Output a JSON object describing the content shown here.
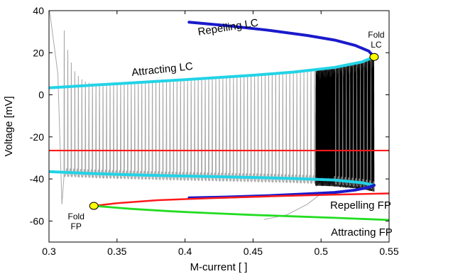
{
  "chart_data": {
    "type": "line",
    "xlabel": "M-current [ ]",
    "ylabel": "Voltage [mV]",
    "xlim": [
      0.3,
      0.55
    ],
    "ylim": [
      -70,
      40
    ],
    "x_ticks": [
      "0.3",
      "0.35",
      "0.4",
      "0.45",
      "0.5",
      "0.55"
    ],
    "y_ticks": [
      "40",
      "20",
      "0",
      "-20",
      "-40",
      "-60"
    ],
    "colors": {
      "repelling_lc": "#1a1acc",
      "attracting_lc": "#22d3e6",
      "repelling_fp": "#ff1a1a",
      "attracting_fp": "#22dd22",
      "trajectory_gray": "#a8a8a8",
      "trajectory_black": "#000000",
      "fold_point": "#ffff00"
    },
    "series": [
      {
        "name": "Repelling LC",
        "x": [
          0.403,
          0.43,
          0.46,
          0.49,
          0.51,
          0.525,
          0.535,
          0.539
        ],
        "upper": [
          34.5,
          32.9,
          30.8,
          28.2,
          26.0,
          23.5,
          20.8,
          18
        ],
        "lower": [
          -49,
          -48.6,
          -48.0,
          -47.1,
          -46.4,
          -45.3,
          -44.0,
          -43
        ]
      },
      {
        "name": "Attracting LC",
        "x": [
          0.3,
          0.33,
          0.36,
          0.39,
          0.42,
          0.45,
          0.48,
          0.51,
          0.53,
          0.539
        ],
        "upper": [
          3.3,
          4.5,
          5.6,
          6.8,
          8.0,
          9.3,
          10.8,
          13.0,
          15.6,
          18
        ],
        "lower": [
          -36.5,
          -37.4,
          -38.0,
          -38.5,
          -38.9,
          -39.3,
          -39.8,
          -40.5,
          -41.8,
          -43
        ]
      },
      {
        "name": "Repelling FP",
        "x": [
          0.333,
          0.35,
          0.38,
          0.42,
          0.46,
          0.5,
          0.55
        ],
        "y": [
          -52.8,
          -51.5,
          -50.1,
          -49.1,
          -48.3,
          -47.6,
          -46.9
        ],
        "upper_branch_y": -26.5
      },
      {
        "name": "Attracting FP",
        "x": [
          0.333,
          0.36,
          0.39,
          0.42,
          0.45,
          0.48,
          0.51,
          0.55
        ],
        "y": [
          -52.8,
          -54.2,
          -55.4,
          -56.3,
          -57.1,
          -57.8,
          -58.5,
          -59.5
        ]
      }
    ],
    "fold_points": [
      {
        "label_lines": [
          "Fold",
          "LC"
        ],
        "x": 0.539,
        "y": 18
      },
      {
        "label_lines": [
          "Fold",
          "FP"
        ],
        "x": 0.333,
        "y": -52.8
      }
    ],
    "annotations": [
      {
        "text": "Repelling LC",
        "x": 0.432,
        "y": 30.5
      },
      {
        "text": "Attracting LC",
        "x": 0.3835,
        "y": 10.5
      },
      {
        "text": "Repelling FP",
        "x": 0.5515,
        "y": -54.2
      },
      {
        "text": "Attracting FP",
        "x": 0.5525,
        "y": -67
      }
    ]
  }
}
